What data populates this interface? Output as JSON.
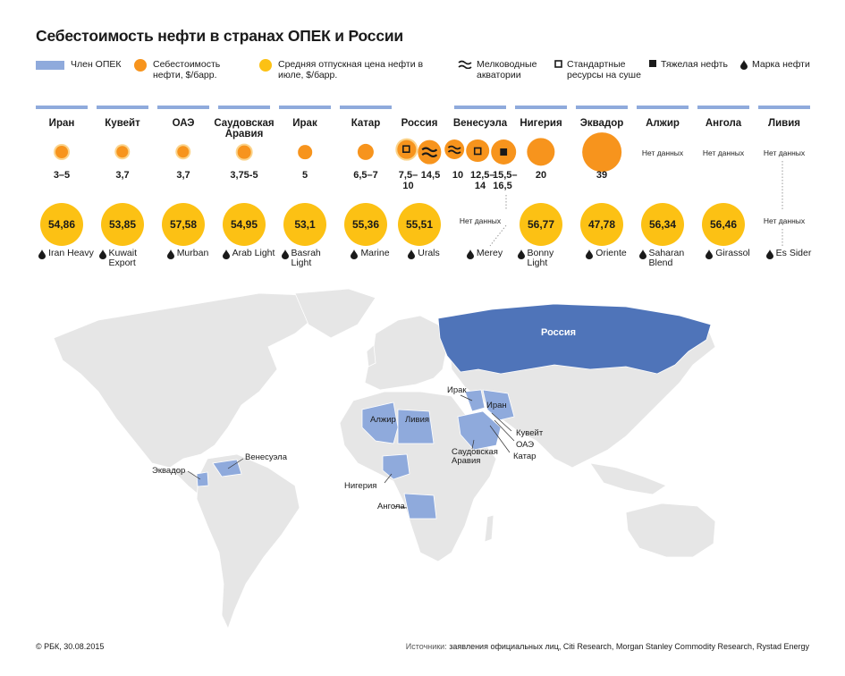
{
  "title": "Себестоимость нефти в странах ОПЕК и России",
  "legend": {
    "opec_member": "Член ОПЕК",
    "cost": "Себестоимость нефти, $/барр.",
    "price": "Средняя отпускная цена нефти в июле, $/барр.",
    "shallow": "Мелководные акватории",
    "onshore": "Стандартные ресурсы на суше",
    "heavy": "Тяжелая нефть",
    "brand": "Марка нефти"
  },
  "colors": {
    "opec": "#8faadc",
    "russia": "#4f74b9",
    "cost": "#f7941d",
    "price": "#fcc114",
    "land": "#e8e8e8"
  },
  "no_data": "Нет данных",
  "chart_data": {
    "type": "bubble-table",
    "cost_unit": "$/барр.",
    "price_unit": "$/барр.",
    "countries": [
      {
        "name": "Иран",
        "cost": [
          {
            "label": "3–5",
            "value": 4
          }
        ],
        "price": "54,86",
        "brand": "Iran Heavy"
      },
      {
        "name": "Кувейт",
        "cost": [
          {
            "label": "3,7",
            "value": 3.7
          }
        ],
        "price": "53,85",
        "brand": "Kuwait Export"
      },
      {
        "name": "ОАЭ",
        "cost": [
          {
            "label": "3,7",
            "value": 3.7
          }
        ],
        "price": "57,58",
        "brand": "Murban"
      },
      {
        "name": "Саудовская Аравия",
        "cost": [
          {
            "label": "3,75-5",
            "value": 4.4
          }
        ],
        "price": "54,95",
        "brand": "Arab Light"
      },
      {
        "name": "Ирак",
        "cost": [
          {
            "label": "5",
            "value": 5
          }
        ],
        "price": "53,1",
        "brand": "Basrah Light"
      },
      {
        "name": "Катар",
        "cost": [
          {
            "label": "6,5–7",
            "value": 6.75
          }
        ],
        "price": "55,36",
        "brand": "Marine"
      },
      {
        "name": "Россия",
        "cost": [
          {
            "label": "7,5– 10",
            "value": 8.75,
            "type": "onshore"
          },
          {
            "label": "14,5",
            "value": 14.5,
            "type": "shallow"
          }
        ],
        "price": "55,51",
        "brand": "Urals"
      },
      {
        "name": "Венесуэла",
        "cost": [
          {
            "label": "10",
            "value": 10,
            "type": "shallow"
          },
          {
            "label": "12,5– 14",
            "value": 13.25,
            "type": "onshore"
          },
          {
            "label": "15,5– 16,5",
            "value": 16,
            "type": "heavy"
          }
        ],
        "price": null,
        "brand": "Merey"
      },
      {
        "name": "Нигерия",
        "cost": [
          {
            "label": "20",
            "value": 20
          }
        ],
        "price": "56,77",
        "brand": "Bonny Light"
      },
      {
        "name": "Эквадор",
        "cost": [
          {
            "label": "39",
            "value": 39
          }
        ],
        "price": "47,78",
        "brand": "Oriente"
      },
      {
        "name": "Алжир",
        "cost": null,
        "price": "56,34",
        "brand": "Saharan Blend"
      },
      {
        "name": "Ангола",
        "cost": null,
        "price": "56,46",
        "brand": "Girassol"
      },
      {
        "name": "Ливия",
        "cost": null,
        "price": null,
        "brand": "Es Sider"
      }
    ]
  },
  "map_labels": {
    "russia": "Россия",
    "iran": "Иран",
    "iraq": "Ирак",
    "kuwait": "Кувейт",
    "uae": "ОАЭ",
    "qatar": "Катар",
    "saudi": "Саудовская Аравия",
    "algeria": "Алжир",
    "libya": "Ливия",
    "nigeria": "Нигерия",
    "angola": "Ангола",
    "venezuela": "Венесуэла",
    "ecuador": "Эквадор"
  },
  "footer": {
    "copyright": "© РБК, 30.08.2015",
    "sources_label": "Источники:",
    "sources": "заявления официальных лиц, Citi Research, Morgan Stanley Commodity Research, Rystad Energy"
  }
}
